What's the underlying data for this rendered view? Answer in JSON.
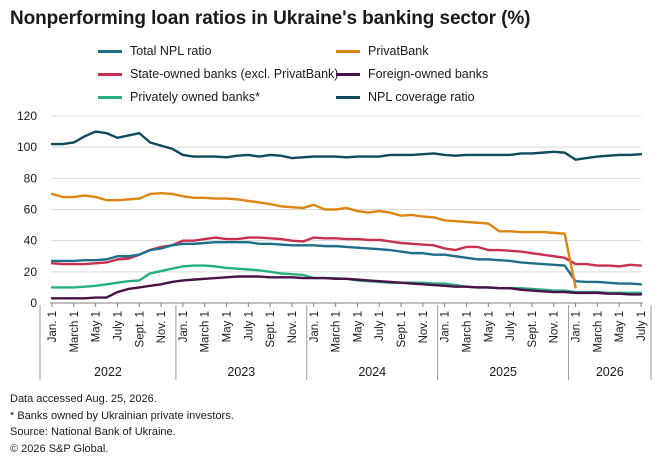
{
  "title": "Nonperforming loan ratios in Ukraine's banking sector (%)",
  "colors": {
    "total": "#1f6f8b",
    "privat": "#de8412",
    "state": "#c8304f",
    "foreign": "#4a1248",
    "private": "#26b082",
    "coverage": "#0d4a5a",
    "grid": "#d9d9d9",
    "axis": "#7f7f7f"
  },
  "chart_data": {
    "type": "line",
    "ylim": [
      0,
      120
    ],
    "yticks": [
      0,
      20,
      40,
      60,
      80,
      100,
      120
    ],
    "grid": true,
    "legend_position": "top",
    "x_tick_labels": [
      "Jan. 1",
      "March 1",
      "May 1",
      "July 1",
      "Sept. 1",
      "Nov. 1",
      "Jan. 1",
      "March 1",
      "May 1",
      "July 1",
      "Sept. 1",
      "Nov. 1",
      "Jan. 1",
      "March 1",
      "May 1",
      "July 1",
      "Sept. 1",
      "Nov. 1",
      "Jan. 1",
      "March 1",
      "May 1",
      "July 1",
      "Sept. 1",
      "Nov. 1",
      "Jan. 1",
      "March 1",
      "May 1",
      "July 1"
    ],
    "years": [
      "2022",
      "2023",
      "2024",
      "2025",
      "2026"
    ],
    "x": [
      "2022-01-01",
      "2022-02-01",
      "2022-03-01",
      "2022-04-01",
      "2022-05-01",
      "2022-06-01",
      "2022-07-01",
      "2022-08-01",
      "2022-09-01",
      "2022-10-01",
      "2022-11-01",
      "2022-12-01",
      "2023-01-01",
      "2023-02-01",
      "2023-03-01",
      "2023-04-01",
      "2023-05-01",
      "2023-06-01",
      "2023-07-01",
      "2023-08-01",
      "2023-09-01",
      "2023-10-01",
      "2023-11-01",
      "2023-12-01",
      "2024-01-01",
      "2024-02-01",
      "2024-03-01",
      "2024-04-01",
      "2024-05-01",
      "2024-06-01",
      "2024-07-01",
      "2024-08-01",
      "2024-09-01",
      "2024-10-01",
      "2024-11-01",
      "2024-12-01",
      "2025-01-01",
      "2025-02-01",
      "2025-03-01",
      "2025-04-01",
      "2025-05-01",
      "2025-06-01",
      "2025-07-01",
      "2025-08-01",
      "2025-09-01",
      "2025-10-01",
      "2025-11-01",
      "2025-12-01",
      "2026-01-01",
      "2026-02-01",
      "2026-03-01",
      "2026-04-01",
      "2026-05-01",
      "2026-06-01",
      "2026-07-01"
    ],
    "series": [
      {
        "name": "Total NPL ratio",
        "color_key": "total",
        "values": [
          27,
          27,
          27,
          27.5,
          27.5,
          28,
          30,
          30,
          31,
          34,
          35,
          37,
          38,
          38,
          38.5,
          39,
          39,
          39,
          39,
          38,
          38,
          37.5,
          37,
          37,
          37,
          36.5,
          36.5,
          36,
          35.5,
          35,
          34.5,
          34,
          33,
          32,
          32,
          31,
          31,
          30,
          29,
          28,
          28,
          27.5,
          27,
          26,
          25.5,
          25,
          24.5,
          24,
          14,
          13.5,
          13.5,
          13,
          12.5,
          12.5,
          12
        ]
      },
      {
        "name": "PrivatBank",
        "color_key": "privat",
        "values": [
          70,
          68,
          68,
          69,
          68,
          66,
          66,
          66.5,
          67,
          70,
          70.5,
          70,
          68.5,
          67.5,
          67.5,
          67,
          67,
          66.5,
          65.5,
          64.5,
          63.5,
          62,
          61.5,
          61,
          63,
          60,
          60,
          61,
          59,
          58,
          59,
          58,
          56,
          56.5,
          55.5,
          55,
          53,
          52.5,
          52,
          51.5,
          51,
          46,
          46,
          45.5,
          45.5,
          45.5,
          45,
          44.5,
          10,
          null,
          null,
          null,
          null,
          null,
          null
        ]
      },
      {
        "name": "State-owned banks (excl. PrivatBank)",
        "color_key": "state",
        "values": [
          25.5,
          25,
          25,
          25,
          25.5,
          26,
          28,
          28.5,
          31,
          34,
          36,
          37,
          40,
          40,
          41,
          42,
          41,
          41,
          42,
          42,
          41.5,
          41,
          40,
          39.5,
          42,
          41.5,
          41.5,
          41,
          41,
          40.5,
          40.5,
          39.5,
          38.5,
          38,
          37.5,
          37,
          35,
          34,
          36,
          36,
          34,
          34,
          33.5,
          33,
          32,
          31,
          30,
          29,
          25,
          25,
          24,
          24,
          23.5,
          24.5,
          24
        ]
      },
      {
        "name": "Foreign-owned banks",
        "color_key": "foreign",
        "values": [
          3,
          3,
          3,
          3,
          3.5,
          3.5,
          7,
          9,
          10,
          11,
          12,
          13.5,
          14.5,
          15,
          15.5,
          16,
          16.5,
          17,
          17,
          17,
          16.5,
          16.5,
          16.5,
          16,
          16,
          16,
          15.5,
          15.5,
          15,
          14.5,
          14,
          13.5,
          13,
          12.5,
          12,
          11.5,
          11,
          10.5,
          10.5,
          10,
          10,
          9.5,
          9.5,
          8.5,
          8,
          7.5,
          7,
          7,
          6.5,
          6.5,
          6.5,
          6,
          6,
          5.5,
          5.5
        ]
      },
      {
        "name": "Privately owned banks*",
        "color_key": "private",
        "values": [
          10,
          10,
          10,
          10.5,
          11,
          12,
          13,
          14,
          14.5,
          19,
          20.5,
          22,
          23.5,
          24,
          24,
          23.5,
          22.5,
          22,
          21.5,
          21,
          20,
          19,
          18.5,
          18,
          16,
          16,
          16,
          15.5,
          14.5,
          14,
          13.5,
          13,
          13,
          13,
          13,
          12.5,
          12.5,
          11.5,
          10.5,
          10,
          10,
          9.5,
          9.5,
          9.5,
          9,
          8.5,
          8,
          8,
          7,
          7,
          7,
          6.5,
          6.5,
          6.5,
          6.5
        ]
      },
      {
        "name": "NPL coverage ratio",
        "color_key": "coverage",
        "values": [
          102,
          102,
          103,
          107,
          110,
          109,
          106,
          107.5,
          109,
          103,
          101,
          99,
          95,
          94,
          94,
          94,
          93.5,
          94.5,
          95,
          94,
          95,
          94.5,
          93,
          93.5,
          94,
          94,
          94,
          93.5,
          94,
          94,
          94,
          95,
          95,
          95,
          95.5,
          96,
          95,
          94.5,
          95,
          95,
          95,
          95,
          95,
          96,
          96,
          96.5,
          97,
          96.5,
          92,
          93,
          94,
          94.5,
          95,
          95,
          95.5
        ]
      }
    ]
  },
  "legend": {
    "items": [
      {
        "label": "Total NPL ratio",
        "color_key": "total"
      },
      {
        "label": "PrivatBank",
        "color_key": "privat"
      },
      {
        "label": "State-owned banks (excl. PrivatBank)",
        "color_key": "state"
      },
      {
        "label": "Foreign-owned banks",
        "color_key": "foreign"
      },
      {
        "label": "Privately owned banks*",
        "color_key": "private"
      },
      {
        "label": "NPL coverage ratio",
        "color_key": "coverage"
      }
    ]
  },
  "footnotes": {
    "accessed": "Data accessed Aug. 25, 2026.",
    "asterisk": "* Banks owned by Ukrainian private investors.",
    "source": "Source: National Bank of Ukraine.",
    "copyright": "© 2026 S&P Global."
  }
}
